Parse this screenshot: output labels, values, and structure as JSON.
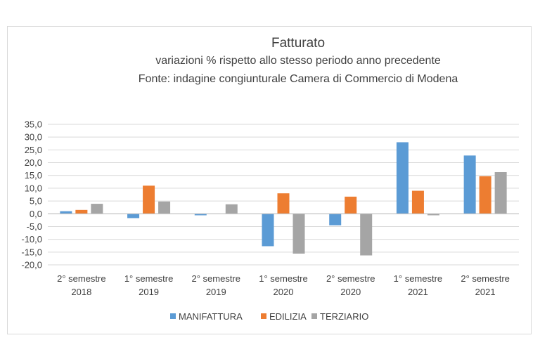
{
  "chart_data": {
    "type": "bar",
    "title": "Fatturato",
    "subtitle_lines": [
      "variazioni % rispetto allo stesso periodo anno precedente",
      "Fonte: indagine congiunturale Camera di Commercio di Modena"
    ],
    "categories": [
      [
        "2° semestre",
        "2018"
      ],
      [
        "1° semestre",
        "2019"
      ],
      [
        "2° semestre",
        "2019"
      ],
      [
        "1° semestre",
        "2020"
      ],
      [
        "2° semestre",
        "2020"
      ],
      [
        "1° semestre",
        "2021"
      ],
      [
        "2° semestre",
        "2021"
      ]
    ],
    "series": [
      {
        "name": "MANIFATTURA",
        "color": "#5b9bd5",
        "values": [
          1.0,
          -1.7,
          -0.6,
          -12.7,
          -4.5,
          28.0,
          22.8
        ]
      },
      {
        "name": "EDILIZIA",
        "color": "#ed7d31",
        "values": [
          1.5,
          11.0,
          0.0,
          8.0,
          6.7,
          9.0,
          14.7
        ]
      },
      {
        "name": "TERZIARIO",
        "color": "#a5a5a5",
        "values": [
          3.9,
          4.8,
          3.7,
          -15.6,
          -16.3,
          -0.6,
          16.3
        ]
      }
    ],
    "ylim": [
      -20,
      35
    ],
    "ytick_step": 5,
    "ytick_labels": [
      "35,0",
      "30,0",
      "25,0",
      "20,0",
      "15,0",
      "10,0",
      "5,0",
      "0,0",
      "-5,0",
      "-10,0",
      "-15,0",
      "-20,0"
    ],
    "grid": true,
    "legend_position": "bottom"
  }
}
